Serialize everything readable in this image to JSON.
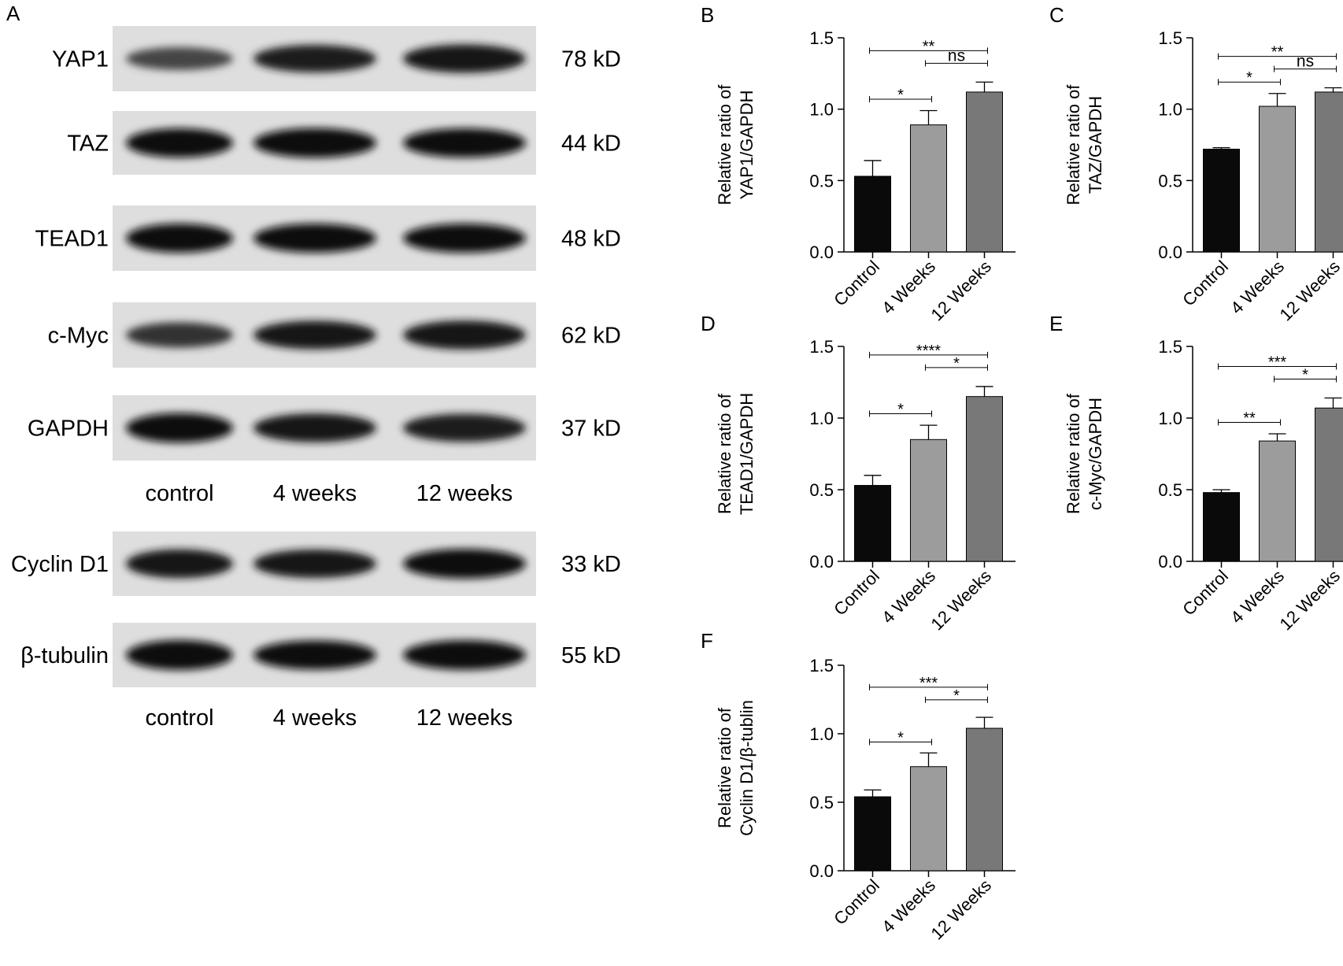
{
  "panel_a": {
    "letter": "A",
    "blots": [
      {
        "protein": "YAP1",
        "size": "78 kD",
        "lanes": [
          0.55,
          0.85,
          0.9
        ]
      },
      {
        "protein": "TAZ",
        "size": "44 kD",
        "lanes": [
          0.95,
          0.98,
          0.95
        ]
      },
      {
        "protein": "TEAD1",
        "size": "48 kD",
        "lanes": [
          0.95,
          0.95,
          0.95
        ]
      },
      {
        "protein": "c-Myc",
        "size": "62 kD",
        "lanes": [
          0.7,
          0.9,
          0.92
        ]
      },
      {
        "protein": "GAPDH",
        "size": "37 kD",
        "lanes": [
          0.98,
          0.92,
          0.88
        ]
      },
      {
        "protein": "Cyclin D1",
        "size": "33 kD",
        "lanes": [
          0.92,
          0.9,
          0.98
        ]
      },
      {
        "protein": "β-tubulin",
        "size": "55 kD",
        "lanes": [
          1.0,
          0.95,
          0.98
        ]
      }
    ],
    "lane_labels_1": [
      "control",
      "4 weeks",
      "12 weeks"
    ],
    "lane_labels_2": [
      "control",
      "4 weeks",
      "12 weeks"
    ]
  },
  "colors": {
    "control": "#0a0a0a",
    "4 Weeks": "#9c9c9c",
    "12 Weeks": "#787878"
  },
  "chart_data": [
    {
      "panel": "B",
      "type": "bar",
      "categories": [
        "Control",
        "4 Weeks",
        "12 Weeks"
      ],
      "values": [
        0.53,
        0.89,
        1.12
      ],
      "errors": [
        0.11,
        0.1,
        0.07
      ],
      "ylabel": [
        "Relative ratio of",
        "YAP1/GAPDH"
      ],
      "ylim": [
        0,
        1.5
      ],
      "yticks": [
        "0.0",
        "0.5",
        "1.0",
        "1.5"
      ],
      "significance": [
        {
          "from": 0,
          "to": 2,
          "label": "**"
        },
        {
          "from": 1,
          "to": 2,
          "label": "ns"
        },
        {
          "from": 0,
          "to": 1,
          "label": "*"
        }
      ]
    },
    {
      "panel": "C",
      "type": "bar",
      "categories": [
        "Control",
        "4 Weeks",
        "12 Weeks"
      ],
      "values": [
        0.72,
        1.02,
        1.12
      ],
      "errors": [
        0.01,
        0.09,
        0.03
      ],
      "ylabel": [
        "Relative ratio of",
        "TAZ/GAPDH"
      ],
      "ylim": [
        0,
        1.5
      ],
      "yticks": [
        "0.0",
        "0.5",
        "1.0",
        "1.5"
      ],
      "significance": [
        {
          "from": 0,
          "to": 2,
          "label": "**"
        },
        {
          "from": 1,
          "to": 2,
          "label": "ns"
        },
        {
          "from": 0,
          "to": 1,
          "label": "*"
        }
      ]
    },
    {
      "panel": "D",
      "type": "bar",
      "categories": [
        "Control",
        "4 Weeks",
        "12 Weeks"
      ],
      "values": [
        0.53,
        0.85,
        1.15
      ],
      "errors": [
        0.07,
        0.1,
        0.07
      ],
      "ylabel": [
        "Relative ratio of",
        "TEAD1/GAPDH"
      ],
      "ylim": [
        0,
        1.5
      ],
      "yticks": [
        "0.0",
        "0.5",
        "1.0",
        "1.5"
      ],
      "significance": [
        {
          "from": 0,
          "to": 2,
          "label": "****"
        },
        {
          "from": 1,
          "to": 2,
          "label": "*"
        },
        {
          "from": 0,
          "to": 1,
          "label": "*"
        }
      ]
    },
    {
      "panel": "E",
      "type": "bar",
      "categories": [
        "Control",
        "4 Weeks",
        "12 Weeks"
      ],
      "values": [
        0.48,
        0.84,
        1.07
      ],
      "errors": [
        0.02,
        0.05,
        0.07
      ],
      "ylabel": [
        "Relative ratio of",
        "c-Myc/GAPDH"
      ],
      "ylim": [
        0,
        1.5
      ],
      "yticks": [
        "0.0",
        "0.5",
        "1.0",
        "1.5"
      ],
      "significance": [
        {
          "from": 0,
          "to": 2,
          "label": "***"
        },
        {
          "from": 1,
          "to": 2,
          "label": "*"
        },
        {
          "from": 0,
          "to": 1,
          "label": "**"
        }
      ]
    },
    {
      "panel": "F",
      "type": "bar",
      "categories": [
        "Control",
        "4 Weeks",
        "12 Weeks"
      ],
      "values": [
        0.54,
        0.76,
        1.04
      ],
      "errors": [
        0.05,
        0.1,
        0.08
      ],
      "ylabel": [
        "Relative ratio of",
        "Cyclin D1/β-tublin"
      ],
      "ylim": [
        0,
        1.5
      ],
      "yticks": [
        "0.0",
        "0.5",
        "1.0",
        "1.5"
      ],
      "significance": [
        {
          "from": 0,
          "to": 2,
          "label": "***"
        },
        {
          "from": 1,
          "to": 2,
          "label": "*"
        },
        {
          "from": 0,
          "to": 1,
          "label": "*"
        }
      ]
    }
  ]
}
